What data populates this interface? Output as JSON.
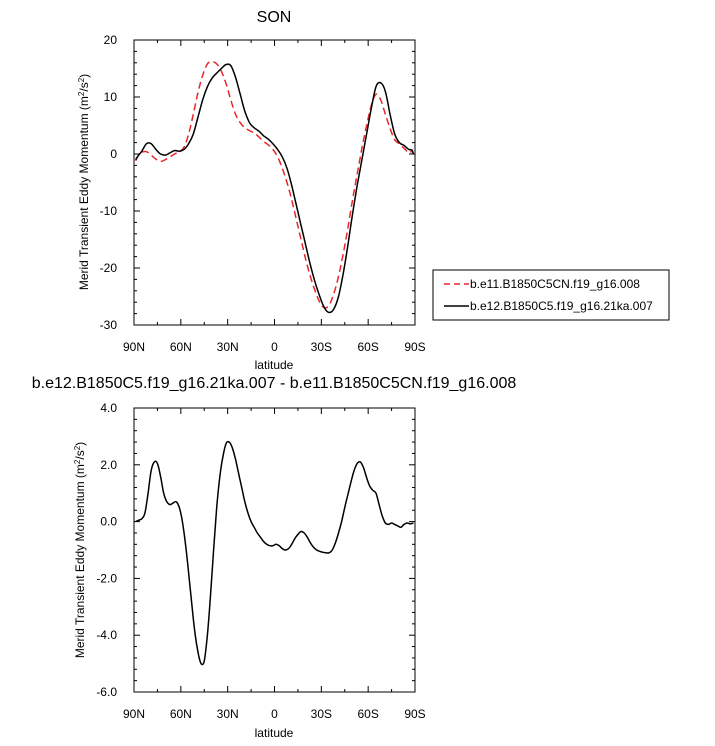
{
  "chart_data": [
    {
      "type": "line",
      "title": "SON",
      "xlabel": "latitude",
      "ylabel": "Merid Transient Eddy Momentum (m",
      "ylabel_sup": "2",
      "ylabel_mid": "/s",
      "ylabel_sup2": "2",
      "ylabel_end": ")",
      "xlim": [
        90,
        -90
      ],
      "ylim": [
        -30,
        20
      ],
      "xticks": [
        90,
        60,
        30,
        0,
        -30,
        -60,
        -90
      ],
      "xtick_labels": [
        "90N",
        "60N",
        "30N",
        "0",
        "30S",
        "60S",
        "90S"
      ],
      "yticks": [
        -30,
        -20,
        -10,
        0,
        10,
        20
      ],
      "ytick_labels": [
        "-30",
        "-20",
        "-10",
        "0",
        "10",
        "20"
      ],
      "legend_position": "right",
      "series": [
        {
          "name": "b.e11.B1850C5CN.f19_g16.008",
          "color": "#e8262a",
          "dash": "dashed",
          "x": [
            89,
            87,
            85,
            82,
            79,
            76,
            73,
            70,
            67,
            64,
            61,
            58,
            55,
            52,
            49,
            46,
            43,
            40,
            37,
            34,
            31,
            28,
            25,
            22,
            19,
            16,
            13,
            10,
            7,
            4,
            1,
            -2,
            -5,
            -8,
            -11,
            -14,
            -17,
            -20,
            -23,
            -26,
            -29,
            -32,
            -35,
            -38,
            -41,
            -44,
            -47,
            -50,
            -53,
            -56,
            -59,
            -62,
            -65,
            -68,
            -71,
            -74,
            -77,
            -80,
            -83,
            -86,
            -88,
            -89
          ],
          "values": [
            -1.2,
            -0.2,
            0.3,
            0.4,
            -0.2,
            -0.9,
            -1.3,
            -1.0,
            -0.5,
            0.0,
            0.4,
            1.2,
            3.5,
            7.0,
            10.8,
            13.8,
            15.8,
            16.2,
            15.8,
            14.5,
            12.3,
            9.5,
            7.0,
            5.5,
            4.6,
            4.1,
            3.7,
            3.0,
            2.2,
            1.6,
            0.8,
            -0.5,
            -2.5,
            -5.0,
            -8.0,
            -11.5,
            -15.0,
            -18.5,
            -21.5,
            -24.0,
            -26.0,
            -27.0,
            -26.5,
            -24.5,
            -21.5,
            -17.5,
            -13.0,
            -8.0,
            -3.5,
            1.0,
            5.0,
            8.5,
            10.5,
            9.5,
            7.0,
            4.5,
            2.5,
            1.8,
            1.0,
            0.2,
            0.5,
            0.0
          ]
        },
        {
          "name": "b.e12.B1850C5.f19_g16.21ka.007",
          "color": "#000000",
          "dash": "solid",
          "x": [
            89,
            87,
            85,
            82,
            79,
            76,
            73,
            70,
            67,
            64,
            61,
            58,
            55,
            52,
            49,
            46,
            43,
            40,
            37,
            34,
            31,
            28,
            25,
            22,
            19,
            16,
            13,
            10,
            7,
            4,
            1,
            -2,
            -5,
            -8,
            -11,
            -14,
            -17,
            -20,
            -23,
            -26,
            -29,
            -32,
            -35,
            -38,
            -41,
            -44,
            -47,
            -50,
            -53,
            -56,
            -59,
            -62,
            -65,
            -68,
            -71,
            -74,
            -77,
            -80,
            -83,
            -86,
            -88,
            -89
          ],
          "values": [
            -1.0,
            -0.2,
            0.5,
            1.8,
            1.8,
            0.8,
            0.0,
            -0.2,
            0.2,
            0.6,
            0.5,
            0.8,
            1.8,
            3.5,
            6.5,
            9.5,
            11.8,
            13.3,
            14.2,
            15.0,
            15.7,
            15.5,
            13.5,
            10.5,
            7.5,
            5.5,
            4.6,
            4.0,
            3.2,
            2.6,
            1.8,
            0.8,
            -0.5,
            -2.5,
            -5.5,
            -9.0,
            -12.5,
            -16.0,
            -19.5,
            -22.5,
            -25.0,
            -27.0,
            -27.8,
            -27.2,
            -25.0,
            -21.0,
            -16.0,
            -10.5,
            -5.5,
            -1.0,
            3.5,
            8.0,
            11.8,
            12.5,
            11.0,
            7.0,
            3.5,
            2.0,
            1.5,
            0.8,
            0.7,
            0.0
          ]
        }
      ]
    },
    {
      "type": "line",
      "title": "b.e12.B1850C5.f19_g16.21ka.007 - b.e11.B1850C5CN.f19_g16.008",
      "xlabel": "latitude",
      "ylabel": "Merid Transient Eddy Momentum (m",
      "ylabel_sup": "2",
      "ylabel_mid": "/s",
      "ylabel_sup2": "2",
      "ylabel_end": ")",
      "xlim": [
        90,
        -90
      ],
      "ylim": [
        -6,
        4
      ],
      "xticks": [
        90,
        60,
        30,
        0,
        -30,
        -60,
        -90
      ],
      "xtick_labels": [
        "90N",
        "60N",
        "30N",
        "0",
        "30S",
        "60S",
        "90S"
      ],
      "yticks": [
        -6,
        -4,
        -2,
        0,
        2,
        4
      ],
      "ytick_labels": [
        "-6.0",
        "-4.0",
        "-2.0",
        "0.0",
        "2.0",
        "4.0"
      ],
      "series": [
        {
          "name": "",
          "color": "#000000",
          "dash": "solid",
          "x": [
            89,
            87,
            85,
            83,
            81,
            79,
            77,
            75,
            73,
            71,
            69,
            67,
            65,
            63,
            61,
            59,
            57,
            55,
            53,
            51,
            49,
            47,
            45,
            43,
            41,
            39,
            37,
            35,
            33,
            31,
            29,
            27,
            25,
            23,
            21,
            19,
            17,
            15,
            13,
            11,
            9,
            7,
            5,
            3,
            1,
            -1,
            -3,
            -5,
            -7,
            -9,
            -11,
            -13,
            -15,
            -17,
            -19,
            -21,
            -23,
            -25,
            -27,
            -29,
            -31,
            -33,
            -35,
            -37,
            -39,
            -41,
            -43,
            -45,
            -47,
            -49,
            -51,
            -53,
            -55,
            -57,
            -59,
            -61,
            -63,
            -65,
            -67,
            -69,
            -71,
            -73,
            -75,
            -77,
            -79,
            -81,
            -83,
            -85,
            -87,
            -89
          ],
          "values": [
            0.0,
            0.05,
            0.1,
            0.3,
            1.0,
            1.8,
            2.1,
            2.05,
            1.6,
            1.0,
            0.7,
            0.6,
            0.65,
            0.7,
            0.5,
            0.0,
            -0.8,
            -1.8,
            -2.9,
            -3.9,
            -4.6,
            -5.0,
            -4.9,
            -4.0,
            -2.6,
            -1.0,
            0.5,
            1.6,
            2.3,
            2.75,
            2.8,
            2.6,
            2.2,
            1.7,
            1.2,
            0.7,
            0.3,
            0.0,
            -0.2,
            -0.4,
            -0.55,
            -0.7,
            -0.8,
            -0.85,
            -0.85,
            -0.8,
            -0.85,
            -0.95,
            -1.0,
            -0.95,
            -0.8,
            -0.6,
            -0.45,
            -0.35,
            -0.4,
            -0.55,
            -0.75,
            -0.9,
            -1.0,
            -1.05,
            -1.08,
            -1.1,
            -1.1,
            -1.0,
            -0.75,
            -0.4,
            0.0,
            0.5,
            0.95,
            1.4,
            1.8,
            2.05,
            2.1,
            1.9,
            1.55,
            1.25,
            1.1,
            1.0,
            0.6,
            0.2,
            -0.05,
            -0.1,
            -0.05,
            -0.1,
            -0.15,
            -0.2,
            -0.1,
            -0.05,
            -0.08,
            -0.05
          ]
        }
      ]
    }
  ]
}
